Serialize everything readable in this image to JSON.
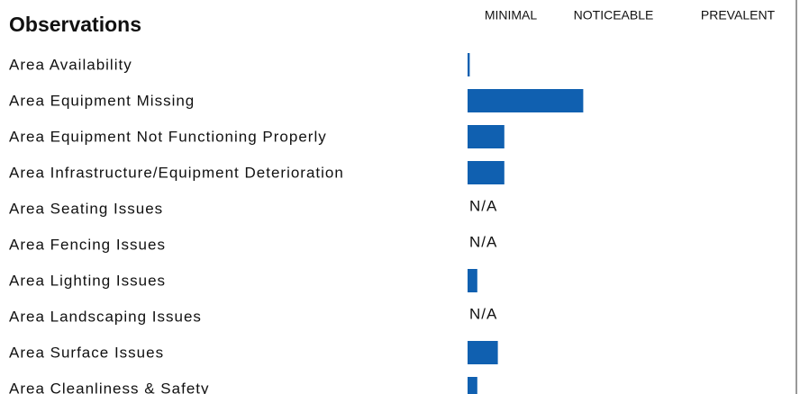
{
  "chart_data": {
    "type": "barh",
    "title": "Observations",
    "categories": [
      "Area Availability",
      "Area Equipment Missing",
      "Area Equipment Not Functioning Properly",
      "Area Infrastructure/Equipment Deterioration",
      "Area Seating Issues",
      "Area Fencing Issues",
      "Area Lighting Issues",
      "Area Landscaping Issues",
      "Area Surface Issues",
      "Area Cleanliness & Safety"
    ],
    "values": [
      0.02,
      1.07,
      0.34,
      0.34,
      null,
      null,
      0.09,
      null,
      0.28,
      0.09
    ],
    "value_labels": [
      null,
      null,
      null,
      null,
      "N/A",
      "N/A",
      null,
      "N/A",
      null,
      null
    ],
    "color": "#1060b0",
    "xlim": [
      0,
      3
    ],
    "xticks": [
      {
        "value": 0.4,
        "label": "MINIMAL"
      },
      {
        "value": 1.35,
        "label": "NOTICEABLE"
      },
      {
        "value": 2.5,
        "label": "PREVALENT"
      }
    ]
  }
}
